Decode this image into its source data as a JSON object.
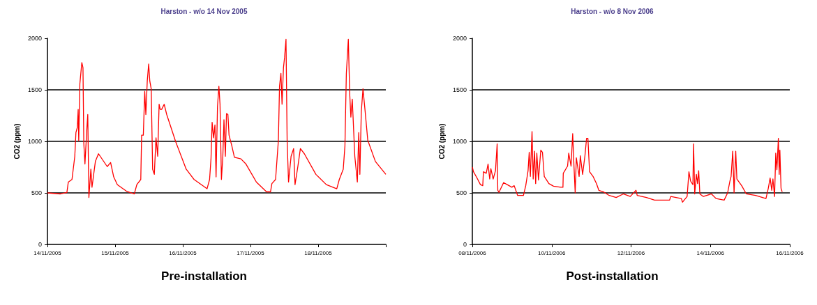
{
  "chart_data": [
    {
      "type": "line",
      "title": "Harston - w/o 14 Nov 2005",
      "ylabel": "CO2 (ppm)",
      "annotations": [
        "Pre-installation"
      ],
      "color": "#ff0000",
      "marker": "none",
      "line_style": "solid",
      "grid": "y",
      "xlim": [
        "2005-11-14T00:00",
        "2005-11-19T00:00"
      ],
      "xticks": [
        {
          "value": "2005-11-14T00:00",
          "label": "14/11/2005"
        },
        {
          "value": "2005-11-15T00:00",
          "label": "15/11/2005"
        },
        {
          "value": "2005-11-16T00:00",
          "label": "16/11/2005"
        },
        {
          "value": "2005-11-17T00:00",
          "label": "17/11/2005"
        },
        {
          "value": "2005-11-18T00:00",
          "label": "18/11/2005"
        },
        {
          "value": "2005-11-19T00:00",
          "label": null
        }
      ],
      "ylim": [
        0,
        2000
      ],
      "yticks": [
        0,
        500,
        1000,
        1500,
        2000
      ],
      "x": [
        "2005-11-14T00:00",
        "2005-11-14T04:36",
        "2005-11-14T06:54",
        "2005-11-14T07:24",
        "2005-11-14T08:42",
        "2005-11-14T09:42",
        "2005-11-14T10:06",
        "2005-11-14T10:36",
        "2005-11-14T10:54",
        "2005-11-14T11:06",
        "2005-11-14T11:30",
        "2005-11-14T12:12",
        "2005-11-14T12:36",
        "2005-11-14T12:54",
        "2005-11-14T13:18",
        "2005-11-14T14:00",
        "2005-11-14T14:18",
        "2005-11-14T14:42",
        "2005-11-14T15:24",
        "2005-11-14T15:48",
        "2005-11-14T17:00",
        "2005-11-14T18:06",
        "2005-11-14T21:12",
        "2005-11-14T22:24",
        "2005-11-14T23:30",
        "2005-11-15T00:48",
        "2005-11-15T04:06",
        "2005-11-15T06:48",
        "2005-11-15T07:42",
        "2005-11-15T09:06",
        "2005-11-15T09:24",
        "2005-11-15T10:00",
        "2005-11-15T10:30",
        "2005-11-15T10:54",
        "2005-11-15T11:24",
        "2005-11-15T11:54",
        "2005-11-15T12:18",
        "2005-11-15T12:48",
        "2005-11-15T13:18",
        "2005-11-15T13:54",
        "2005-11-15T14:30",
        "2005-11-15T15:06",
        "2005-11-15T15:36",
        "2005-11-15T16:00",
        "2005-11-15T16:30",
        "2005-11-15T17:24",
        "2005-11-15T18:18",
        "2005-11-15T21:30",
        "2005-11-16T01:12",
        "2005-11-16T04:00",
        "2005-11-16T08:36",
        "2005-11-16T09:30",
        "2005-11-16T10:00",
        "2005-11-16T10:24",
        "2005-11-16T10:54",
        "2005-11-16T11:24",
        "2005-11-16T11:48",
        "2005-11-16T12:18",
        "2005-11-16T12:48",
        "2005-11-16T13:12",
        "2005-11-16T13:42",
        "2005-11-16T14:12",
        "2005-11-16T14:36",
        "2005-11-16T15:06",
        "2005-11-16T15:30",
        "2005-11-16T16:00",
        "2005-11-16T16:24",
        "2005-11-16T17:24",
        "2005-11-16T18:18",
        "2005-11-16T20:36",
        "2005-11-16T22:24",
        "2005-11-17T02:06",
        "2005-11-17T05:42",
        "2005-11-17T07:06",
        "2005-11-17T07:36",
        "2005-11-17T08:54",
        "2005-11-17T09:54",
        "2005-11-17T10:18",
        "2005-11-17T10:48",
        "2005-11-17T11:12",
        "2005-11-17T11:42",
        "2005-11-17T12:06",
        "2005-11-17T12:36",
        "2005-11-17T13:00",
        "2005-11-17T13:30",
        "2005-11-17T14:24",
        "2005-11-17T15:18",
        "2005-11-17T15:48",
        "2005-11-17T16:48",
        "2005-11-17T17:42",
        "2005-11-17T19:06",
        "2005-11-17T23:12",
        "2005-11-18T02:54",
        "2005-11-18T06:36",
        "2005-11-18T07:30",
        "2005-11-18T08:54",
        "2005-11-18T09:30",
        "2005-11-18T10:00",
        "2005-11-18T10:42",
        "2005-11-18T11:12",
        "2005-11-18T11:36",
        "2005-11-18T12:06",
        "2005-11-18T13:00",
        "2005-11-18T13:54",
        "2005-11-18T14:24",
        "2005-11-18T14:48",
        "2005-11-18T15:18",
        "2005-11-18T15:54",
        "2005-11-18T16:36",
        "2005-11-18T17:36",
        "2005-11-18T20:18",
        "2005-11-19T00:00"
      ],
      "values": [
        500,
        490,
        505,
        605,
        630,
        855,
        1085,
        1135,
        1310,
        1005,
        1560,
        1765,
        1715,
        980,
        780,
        1135,
        1260,
        455,
        730,
        555,
        805,
        880,
        755,
        795,
        655,
        580,
        515,
        490,
        580,
        630,
        1060,
        1060,
        1485,
        1260,
        1585,
        1750,
        1585,
        1510,
        730,
        680,
        1035,
        855,
        1360,
        1310,
        1310,
        1360,
        1260,
        995,
        730,
        630,
        540,
        630,
        830,
        1185,
        1035,
        1160,
        655,
        1335,
        1535,
        1360,
        630,
        855,
        1210,
        855,
        1270,
        1260,
        1060,
        955,
        845,
        830,
        780,
        605,
        510,
        510,
        590,
        630,
        1010,
        1535,
        1660,
        1360,
        1715,
        1815,
        1990,
        1010,
        605,
        855,
        930,
        580,
        755,
        930,
        880,
        680,
        580,
        540,
        630,
        730,
        955,
        1660,
        1990,
        1460,
        1235,
        1410,
        855,
        605,
        1085,
        680,
        1285,
        1510,
        1310,
        1010,
        805,
        680
      ]
    },
    {
      "type": "line",
      "title": "Harston - w/o 8 Nov 2006",
      "ylabel": "CO2 (ppm)",
      "annotations": [
        "Post-installation"
      ],
      "color": "#ff0000",
      "marker": "none",
      "line_style": "solid",
      "grid": "y",
      "xlim": [
        "2006-11-08T00:00",
        "2006-11-16T00:00"
      ],
      "xticks": [
        {
          "value": "2006-11-08T00:00",
          "label": "08/11/2006"
        },
        {
          "value": "2006-11-10T00:00",
          "label": "10/11/2006"
        },
        {
          "value": "2006-11-12T00:00",
          "label": "12/11/2006"
        },
        {
          "value": "2006-11-14T00:00",
          "label": "14/11/2006"
        },
        {
          "value": "2006-11-16T00:00",
          "label": "16/11/2006"
        }
      ],
      "ylim": [
        0,
        2000
      ],
      "yticks": [
        0,
        500,
        1000,
        1500,
        2000
      ],
      "x": [
        "2006-11-08T00:00",
        "2006-11-08T00:42",
        "2006-11-08T02:48",
        "2006-11-08T04:54",
        "2006-11-08T06:18",
        "2006-11-08T06:42",
        "2006-11-08T08:24",
        "2006-11-08T09:30",
        "2006-11-08T10:30",
        "2006-11-08T11:12",
        "2006-11-08T12:36",
        "2006-11-08T14:00",
        "2006-11-08T15:00",
        "2006-11-08T15:24",
        "2006-11-08T16:06",
        "2006-11-08T18:54",
        "2006-11-08T21:06",
        "2006-11-08T23:54",
        "2006-11-09T01:18",
        "2006-11-09T03:24",
        "2006-11-09T06:54",
        "2006-11-09T08:18",
        "2006-11-09T09:42",
        "2006-11-09T10:24",
        "2006-11-09T11:06",
        "2006-11-09T12:06",
        "2006-11-09T12:48",
        "2006-11-09T13:36",
        "2006-11-09T14:18",
        "2006-11-09T15:00",
        "2006-11-09T16:00",
        "2006-11-09T17:24",
        "2006-11-09T18:24",
        "2006-11-09T19:30",
        "2006-11-09T22:18",
        "2006-11-10T01:06",
        "2006-11-10T05:24",
        "2006-11-10T06:48",
        "2006-11-10T07:00",
        "2006-11-10T09:36",
        "2006-11-10T10:18",
        "2006-11-10T11:42",
        "2006-11-10T12:42",
        "2006-11-10T13:30",
        "2006-11-10T14:12",
        "2006-11-10T14:54",
        "2006-11-10T16:36",
        "2006-11-10T17:18",
        "2006-11-10T18:42",
        "2006-11-10T20:06",
        "2006-11-10T21:06",
        "2006-11-10T21:54",
        "2006-11-10T22:54",
        "2006-11-11T01:00",
        "2006-11-11T03:06",
        "2006-11-11T04:30",
        "2006-11-11T07:18",
        "2006-11-11T10:48",
        "2006-11-11T15:00",
        "2006-11-11T19:18",
        "2006-11-11T23:30",
        "2006-11-12T03:00",
        "2006-11-12T03:42",
        "2006-11-12T09:18",
        "2006-11-12T14:12",
        "2006-11-12T23:18",
        "2006-11-13T00:00",
        "2006-11-13T06:24",
        "2006-11-13T07:06",
        "2006-11-13T09:54",
        "2006-11-13T11:00",
        "2006-11-13T12:00",
        "2006-11-13T13:24",
        "2006-11-13T13:48",
        "2006-11-13T14:30",
        "2006-11-13T15:30",
        "2006-11-13T16:12",
        "2006-11-13T16:54",
        "2006-11-13T17:36",
        "2006-11-13T19:42",
        "2006-11-14T00:36",
        "2006-11-14T03:24",
        "2006-11-14T08:18",
        "2006-11-14T10:24",
        "2006-11-14T11:48",
        "2006-11-14T12:30",
        "2006-11-14T13:30",
        "2006-11-14T14:18",
        "2006-11-14T15:18",
        "2006-11-14T16:00",
        "2006-11-14T18:54",
        "2006-11-14T21:42",
        "2006-11-15T03:18",
        "2006-11-15T07:30",
        "2006-11-15T09:36",
        "2006-11-15T11:00",
        "2006-11-15T12:06",
        "2006-11-15T13:06",
        "2006-11-15T13:48",
        "2006-11-15T14:48",
        "2006-11-15T15:30",
        "2006-11-15T16:12",
        "2006-11-15T17:06",
        "2006-11-15T17:36",
        "2006-11-15T18:00",
        "2006-11-15T18:42",
        "2006-11-15T19:24"
      ],
      "values": [
        750,
        705,
        645,
        580,
        570,
        705,
        690,
        780,
        635,
        735,
        635,
        715,
        975,
        525,
        505,
        600,
        580,
        555,
        570,
        475,
        475,
        570,
        715,
        895,
        660,
        1095,
        635,
        905,
        590,
        885,
        625,
        915,
        895,
        660,
        590,
        565,
        555,
        555,
        690,
        760,
        885,
        760,
        1075,
        750,
        500,
        840,
        660,
        860,
        680,
        860,
        1030,
        1030,
        705,
        660,
        590,
        525,
        510,
        475,
        455,
        490,
        465,
        525,
        475,
        455,
        430,
        430,
        465,
        445,
        410,
        465,
        705,
        615,
        580,
        975,
        490,
        680,
        590,
        715,
        490,
        465,
        490,
        445,
        430,
        500,
        615,
        660,
        905,
        500,
        905,
        635,
        570,
        490,
        475,
        455,
        445,
        545,
        645,
        525,
        635,
        465,
        885,
        725,
        1030,
        680,
        915,
        545,
        510
      ]
    }
  ]
}
